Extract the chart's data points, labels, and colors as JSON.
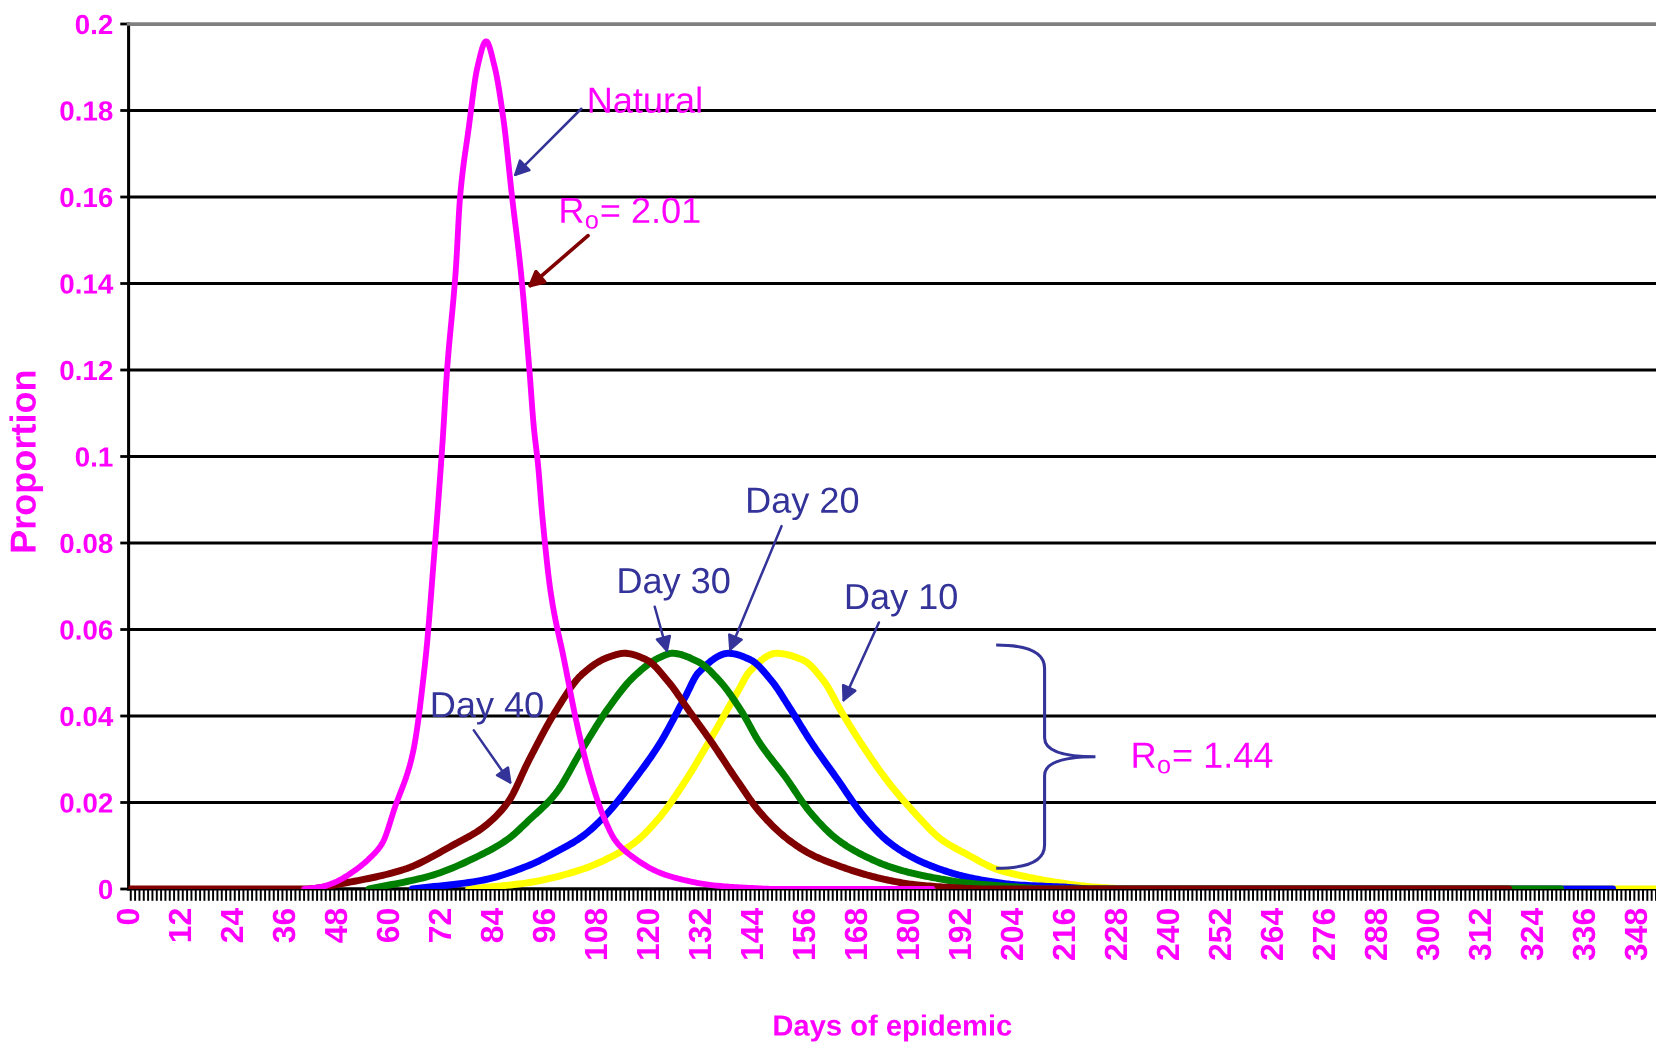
{
  "chart_data": {
    "type": "line",
    "xlabel": "Days of epidemic",
    "ylabel": "Proportion",
    "line_style": "solid",
    "grid": "y",
    "xlim": [
      -0.5,
      352
    ],
    "ylim": [
      0,
      0.2
    ],
    "yticks": [
      0,
      0.02,
      0.04,
      0.06,
      0.08,
      0.1,
      0.12,
      0.14,
      0.16,
      0.18,
      0.2
    ],
    "xticks": [
      0,
      {
        "value": 1,
        "label": null
      },
      {
        "value": 2,
        "label": null
      },
      {
        "value": 3,
        "label": null
      },
      {
        "value": 4,
        "label": null
      },
      {
        "value": 5,
        "label": null
      },
      {
        "value": 6,
        "label": null
      },
      {
        "value": 7,
        "label": null
      },
      {
        "value": 8,
        "label": null
      },
      {
        "value": 9,
        "label": null
      },
      {
        "value": 10,
        "label": null
      },
      {
        "value": 11,
        "label": null
      },
      12,
      {
        "value": 13,
        "label": null
      },
      {
        "value": 14,
        "label": null
      },
      {
        "value": 15,
        "label": null
      },
      {
        "value": 16,
        "label": null
      },
      {
        "value": 17,
        "label": null
      },
      {
        "value": 18,
        "label": null
      },
      {
        "value": 19,
        "label": null
      },
      {
        "value": 20,
        "label": null
      },
      {
        "value": 21,
        "label": null
      },
      {
        "value": 22,
        "label": null
      },
      {
        "value": 23,
        "label": null
      },
      24,
      {
        "value": 25,
        "label": null
      },
      {
        "value": 26,
        "label": null
      },
      {
        "value": 27,
        "label": null
      },
      {
        "value": 28,
        "label": null
      },
      {
        "value": 29,
        "label": null
      },
      {
        "value": 30,
        "label": null
      },
      {
        "value": 31,
        "label": null
      },
      {
        "value": 32,
        "label": null
      },
      {
        "value": 33,
        "label": null
      },
      {
        "value": 34,
        "label": null
      },
      {
        "value": 35,
        "label": null
      },
      36,
      {
        "value": 37,
        "label": null
      },
      {
        "value": 38,
        "label": null
      },
      {
        "value": 39,
        "label": null
      },
      {
        "value": 40,
        "label": null
      },
      {
        "value": 41,
        "label": null
      },
      {
        "value": 42,
        "label": null
      },
      {
        "value": 43,
        "label": null
      },
      {
        "value": 44,
        "label": null
      },
      {
        "value": 45,
        "label": null
      },
      {
        "value": 46,
        "label": null
      },
      {
        "value": 47,
        "label": null
      },
      48,
      {
        "value": 49,
        "label": null
      },
      {
        "value": 50,
        "label": null
      },
      {
        "value": 51,
        "label": null
      },
      {
        "value": 52,
        "label": null
      },
      {
        "value": 53,
        "label": null
      },
      {
        "value": 54,
        "label": null
      },
      {
        "value": 55,
        "label": null
      },
      {
        "value": 56,
        "label": null
      },
      {
        "value": 57,
        "label": null
      },
      {
        "value": 58,
        "label": null
      },
      {
        "value": 59,
        "label": null
      },
      60,
      {
        "value": 61,
        "label": null
      },
      {
        "value": 62,
        "label": null
      },
      {
        "value": 63,
        "label": null
      },
      {
        "value": 64,
        "label": null
      },
      {
        "value": 65,
        "label": null
      },
      {
        "value": 66,
        "label": null
      },
      {
        "value": 67,
        "label": null
      },
      {
        "value": 68,
        "label": null
      },
      {
        "value": 69,
        "label": null
      },
      {
        "value": 70,
        "label": null
      },
      {
        "value": 71,
        "label": null
      },
      72,
      {
        "value": 73,
        "label": null
      },
      {
        "value": 74,
        "label": null
      },
      {
        "value": 75,
        "label": null
      },
      {
        "value": 76,
        "label": null
      },
      {
        "value": 77,
        "label": null
      },
      {
        "value": 78,
        "label": null
      },
      {
        "value": 79,
        "label": null
      },
      {
        "value": 80,
        "label": null
      },
      {
        "value": 81,
        "label": null
      },
      {
        "value": 82,
        "label": null
      },
      {
        "value": 83,
        "label": null
      },
      84,
      {
        "value": 85,
        "label": null
      },
      {
        "value": 86,
        "label": null
      },
      {
        "value": 87,
        "label": null
      },
      {
        "value": 88,
        "label": null
      },
      {
        "value": 89,
        "label": null
      },
      {
        "value": 90,
        "label": null
      },
      {
        "value": 91,
        "label": null
      },
      {
        "value": 92,
        "label": null
      },
      {
        "value": 93,
        "label": null
      },
      {
        "value": 94,
        "label": null
      },
      {
        "value": 95,
        "label": null
      },
      96,
      {
        "value": 97,
        "label": null
      },
      {
        "value": 98,
        "label": null
      },
      {
        "value": 99,
        "label": null
      },
      {
        "value": 100,
        "label": null
      },
      {
        "value": 101,
        "label": null
      },
      {
        "value": 102,
        "label": null
      },
      {
        "value": 103,
        "label": null
      },
      {
        "value": 104,
        "label": null
      },
      {
        "value": 105,
        "label": null
      },
      {
        "value": 106,
        "label": null
      },
      {
        "value": 107,
        "label": null
      },
      108,
      {
        "value": 109,
        "label": null
      },
      {
        "value": 110,
        "label": null
      },
      {
        "value": 111,
        "label": null
      },
      {
        "value": 112,
        "label": null
      },
      {
        "value": 113,
        "label": null
      },
      {
        "value": 114,
        "label": null
      },
      {
        "value": 115,
        "label": null
      },
      {
        "value": 116,
        "label": null
      },
      {
        "value": 117,
        "label": null
      },
      {
        "value": 118,
        "label": null
      },
      {
        "value": 119,
        "label": null
      },
      120,
      {
        "value": 121,
        "label": null
      },
      {
        "value": 122,
        "label": null
      },
      {
        "value": 123,
        "label": null
      },
      {
        "value": 124,
        "label": null
      },
      {
        "value": 125,
        "label": null
      },
      {
        "value": 126,
        "label": null
      },
      {
        "value": 127,
        "label": null
      },
      {
        "value": 128,
        "label": null
      },
      {
        "value": 129,
        "label": null
      },
      {
        "value": 130,
        "label": null
      },
      {
        "value": 131,
        "label": null
      },
      132,
      {
        "value": 133,
        "label": null
      },
      {
        "value": 134,
        "label": null
      },
      {
        "value": 135,
        "label": null
      },
      {
        "value": 136,
        "label": null
      },
      {
        "value": 137,
        "label": null
      },
      {
        "value": 138,
        "label": null
      },
      {
        "value": 139,
        "label": null
      },
      {
        "value": 140,
        "label": null
      },
      {
        "value": 141,
        "label": null
      },
      {
        "value": 142,
        "label": null
      },
      {
        "value": 143,
        "label": null
      },
      144,
      {
        "value": 145,
        "label": null
      },
      {
        "value": 146,
        "label": null
      },
      {
        "value": 147,
        "label": null
      },
      {
        "value": 148,
        "label": null
      },
      {
        "value": 149,
        "label": null
      },
      {
        "value": 150,
        "label": null
      },
      {
        "value": 151,
        "label": null
      },
      {
        "value": 152,
        "label": null
      },
      {
        "value": 153,
        "label": null
      },
      {
        "value": 154,
        "label": null
      },
      {
        "value": 155,
        "label": null
      },
      156,
      {
        "value": 157,
        "label": null
      },
      {
        "value": 158,
        "label": null
      },
      {
        "value": 159,
        "label": null
      },
      {
        "value": 160,
        "label": null
      },
      {
        "value": 161,
        "label": null
      },
      {
        "value": 162,
        "label": null
      },
      {
        "value": 163,
        "label": null
      },
      {
        "value": 164,
        "label": null
      },
      {
        "value": 165,
        "label": null
      },
      {
        "value": 166,
        "label": null
      },
      {
        "value": 167,
        "label": null
      },
      168,
      {
        "value": 169,
        "label": null
      },
      {
        "value": 170,
        "label": null
      },
      {
        "value": 171,
        "label": null
      },
      {
        "value": 172,
        "label": null
      },
      {
        "value": 173,
        "label": null
      },
      {
        "value": 174,
        "label": null
      },
      {
        "value": 175,
        "label": null
      },
      {
        "value": 176,
        "label": null
      },
      {
        "value": 177,
        "label": null
      },
      {
        "value": 178,
        "label": null
      },
      {
        "value": 179,
        "label": null
      },
      180,
      {
        "value": 181,
        "label": null
      },
      {
        "value": 182,
        "label": null
      },
      {
        "value": 183,
        "label": null
      },
      {
        "value": 184,
        "label": null
      },
      {
        "value": 185,
        "label": null
      },
      {
        "value": 186,
        "label": null
      },
      {
        "value": 187,
        "label": null
      },
      {
        "value": 188,
        "label": null
      },
      {
        "value": 189,
        "label": null
      },
      {
        "value": 190,
        "label": null
      },
      {
        "value": 191,
        "label": null
      },
      192,
      {
        "value": 193,
        "label": null
      },
      {
        "value": 194,
        "label": null
      },
      {
        "value": 195,
        "label": null
      },
      {
        "value": 196,
        "label": null
      },
      {
        "value": 197,
        "label": null
      },
      {
        "value": 198,
        "label": null
      },
      {
        "value": 199,
        "label": null
      },
      {
        "value": 200,
        "label": null
      },
      {
        "value": 201,
        "label": null
      },
      {
        "value": 202,
        "label": null
      },
      {
        "value": 203,
        "label": null
      },
      204,
      {
        "value": 205,
        "label": null
      },
      {
        "value": 206,
        "label": null
      },
      {
        "value": 207,
        "label": null
      },
      {
        "value": 208,
        "label": null
      },
      {
        "value": 209,
        "label": null
      },
      {
        "value": 210,
        "label": null
      },
      {
        "value": 211,
        "label": null
      },
      {
        "value": 212,
        "label": null
      },
      {
        "value": 213,
        "label": null
      },
      {
        "value": 214,
        "label": null
      },
      {
        "value": 215,
        "label": null
      },
      216,
      {
        "value": 217,
        "label": null
      },
      {
        "value": 218,
        "label": null
      },
      {
        "value": 219,
        "label": null
      },
      {
        "value": 220,
        "label": null
      },
      {
        "value": 221,
        "label": null
      },
      {
        "value": 222,
        "label": null
      },
      {
        "value": 223,
        "label": null
      },
      {
        "value": 224,
        "label": null
      },
      {
        "value": 225,
        "label": null
      },
      {
        "value": 226,
        "label": null
      },
      {
        "value": 227,
        "label": null
      },
      228,
      {
        "value": 229,
        "label": null
      },
      {
        "value": 230,
        "label": null
      },
      {
        "value": 231,
        "label": null
      },
      {
        "value": 232,
        "label": null
      },
      {
        "value": 233,
        "label": null
      },
      {
        "value": 234,
        "label": null
      },
      {
        "value": 235,
        "label": null
      },
      {
        "value": 236,
        "label": null
      },
      {
        "value": 237,
        "label": null
      },
      {
        "value": 238,
        "label": null
      },
      {
        "value": 239,
        "label": null
      },
      240,
      {
        "value": 241,
        "label": null
      },
      {
        "value": 242,
        "label": null
      },
      {
        "value": 243,
        "label": null
      },
      {
        "value": 244,
        "label": null
      },
      {
        "value": 245,
        "label": null
      },
      {
        "value": 246,
        "label": null
      },
      {
        "value": 247,
        "label": null
      },
      {
        "value": 248,
        "label": null
      },
      {
        "value": 249,
        "label": null
      },
      {
        "value": 250,
        "label": null
      },
      {
        "value": 251,
        "label": null
      },
      252,
      {
        "value": 253,
        "label": null
      },
      {
        "value": 254,
        "label": null
      },
      {
        "value": 255,
        "label": null
      },
      {
        "value": 256,
        "label": null
      },
      {
        "value": 257,
        "label": null
      },
      {
        "value": 258,
        "label": null
      },
      {
        "value": 259,
        "label": null
      },
      {
        "value": 260,
        "label": null
      },
      {
        "value": 261,
        "label": null
      },
      {
        "value": 262,
        "label": null
      },
      {
        "value": 263,
        "label": null
      },
      264,
      {
        "value": 265,
        "label": null
      },
      {
        "value": 266,
        "label": null
      },
      {
        "value": 267,
        "label": null
      },
      {
        "value": 268,
        "label": null
      },
      {
        "value": 269,
        "label": null
      },
      {
        "value": 270,
        "label": null
      },
      {
        "value": 271,
        "label": null
      },
      {
        "value": 272,
        "label": null
      },
      {
        "value": 273,
        "label": null
      },
      {
        "value": 274,
        "label": null
      },
      {
        "value": 275,
        "label": null
      },
      276,
      {
        "value": 277,
        "label": null
      },
      {
        "value": 278,
        "label": null
      },
      {
        "value": 279,
        "label": null
      },
      {
        "value": 280,
        "label": null
      },
      {
        "value": 281,
        "label": null
      },
      {
        "value": 282,
        "label": null
      },
      {
        "value": 283,
        "label": null
      },
      {
        "value": 284,
        "label": null
      },
      {
        "value": 285,
        "label": null
      },
      {
        "value": 286,
        "label": null
      },
      {
        "value": 287,
        "label": null
      },
      288,
      {
        "value": 289,
        "label": null
      },
      {
        "value": 290,
        "label": null
      },
      {
        "value": 291,
        "label": null
      },
      {
        "value": 292,
        "label": null
      },
      {
        "value": 293,
        "label": null
      },
      {
        "value": 294,
        "label": null
      },
      {
        "value": 295,
        "label": null
      },
      {
        "value": 296,
        "label": null
      },
      {
        "value": 297,
        "label": null
      },
      {
        "value": 298,
        "label": null
      },
      {
        "value": 299,
        "label": null
      },
      300,
      {
        "value": 301,
        "label": null
      },
      {
        "value": 302,
        "label": null
      },
      {
        "value": 303,
        "label": null
      },
      {
        "value": 304,
        "label": null
      },
      {
        "value": 305,
        "label": null
      },
      {
        "value": 306,
        "label": null
      },
      {
        "value": 307,
        "label": null
      },
      {
        "value": 308,
        "label": null
      },
      {
        "value": 309,
        "label": null
      },
      {
        "value": 310,
        "label": null
      },
      {
        "value": 311,
        "label": null
      },
      312,
      {
        "value": 313,
        "label": null
      },
      {
        "value": 314,
        "label": null
      },
      {
        "value": 315,
        "label": null
      },
      {
        "value": 316,
        "label": null
      },
      {
        "value": 317,
        "label": null
      },
      {
        "value": 318,
        "label": null
      },
      {
        "value": 319,
        "label": null
      },
      {
        "value": 320,
        "label": null
      },
      {
        "value": 321,
        "label": null
      },
      {
        "value": 322,
        "label": null
      },
      {
        "value": 323,
        "label": null
      },
      324,
      {
        "value": 325,
        "label": null
      },
      {
        "value": 326,
        "label": null
      },
      {
        "value": 327,
        "label": null
      },
      {
        "value": 328,
        "label": null
      },
      {
        "value": 329,
        "label": null
      },
      {
        "value": 330,
        "label": null
      },
      {
        "value": 331,
        "label": null
      },
      {
        "value": 332,
        "label": null
      },
      {
        "value": 333,
        "label": null
      },
      {
        "value": 334,
        "label": null
      },
      {
        "value": 335,
        "label": null
      },
      336,
      {
        "value": 337,
        "label": null
      },
      {
        "value": 338,
        "label": null
      },
      {
        "value": 339,
        "label": null
      },
      {
        "value": 340,
        "label": null
      },
      {
        "value": 341,
        "label": null
      },
      {
        "value": 342,
        "label": null
      },
      {
        "value": 343,
        "label": null
      },
      {
        "value": 344,
        "label": null
      },
      {
        "value": 345,
        "label": null
      },
      {
        "value": 346,
        "label": null
      },
      {
        "value": 347,
        "label": null
      },
      348,
      {
        "value": 349,
        "label": null
      },
      {
        "value": 350,
        "label": null
      },
      {
        "value": 351,
        "label": null
      },
      {
        "value": 352,
        "label": null
      }
    ],
    "series": [
      {
        "color": "#ff00ff",
        "x": [
          40,
          44,
          47,
          52,
          55,
          58,
          61,
          65,
          68,
          70,
          72,
          73,
          75,
          76,
          78,
          80,
          82,
          84,
          86,
          88,
          90,
          92,
          93,
          94,
          95,
          97,
          100,
          103,
          106,
          109,
          112,
          116,
          122,
          128,
          134,
          142,
          150,
          185
        ],
        "values": [
          0,
          0.0005,
          0.0015,
          0.0045,
          0.007,
          0.0105,
          0.019,
          0.031,
          0.053,
          0.077,
          0.104,
          0.12,
          0.143,
          0.16,
          0.176,
          0.19,
          0.196,
          0.19,
          0.178,
          0.16,
          0.143,
          0.12,
          0.107,
          0.098,
          0.086,
          0.068,
          0.053,
          0.038,
          0.026,
          0.017,
          0.011,
          0.0073,
          0.0038,
          0.002,
          0.0009,
          0.0003,
          0,
          0
        ]
      },
      {
        "color": "#800000",
        "x": [
          0,
          40,
          50,
          63,
          75,
          81,
          87,
          92,
          98,
          104,
          110,
          114,
          119,
          124,
          129,
          134,
          140,
          145,
          151,
          157,
          163,
          169,
          175,
          181,
          190,
          198,
          318
        ],
        "values": [
          0,
          0,
          0.0015,
          0.0045,
          0.0105,
          0.014,
          0.02,
          0.03,
          0.041,
          0.0495,
          0.0535,
          0.0545,
          0.053,
          0.048,
          0.041,
          0.034,
          0.025,
          0.018,
          0.012,
          0.008,
          0.0055,
          0.0035,
          0.002,
          0.001,
          0.0003,
          0,
          0
        ]
      },
      {
        "color": "#008000",
        "x": [
          55,
          69,
          81,
          87,
          92,
          98,
          104,
          110,
          116,
          122,
          125,
          131,
          136,
          141,
          145,
          151,
          157,
          163,
          169,
          175,
          181,
          187,
          192,
          204,
          212,
          330
        ],
        "values": [
          0,
          0.003,
          0.008,
          0.0115,
          0.016,
          0.022,
          0.032,
          0.0415,
          0.049,
          0.0535,
          0.0545,
          0.0525,
          0.048,
          0.041,
          0.034,
          0.026,
          0.0175,
          0.0115,
          0.0078,
          0.0052,
          0.0035,
          0.0023,
          0.0015,
          0.0005,
          0,
          0
        ]
      },
      {
        "color": "#0000ff",
        "x": [
          65,
          81,
          92,
          98,
          104,
          110,
          116,
          122,
          128,
          131,
          138,
          143,
          148,
          152,
          157,
          163,
          169,
          175,
          181,
          187,
          192,
          198,
          204,
          216,
          222,
          342
        ],
        "values": [
          0,
          0.002,
          0.0055,
          0.0085,
          0.012,
          0.0175,
          0.025,
          0.0335,
          0.0445,
          0.05,
          0.0545,
          0.053,
          0.048,
          0.042,
          0.034,
          0.0255,
          0.017,
          0.0108,
          0.007,
          0.0045,
          0.003,
          0.0018,
          0.001,
          0.0004,
          0,
          0
        ]
      },
      {
        "color": "#ffff00",
        "x": [
          78,
          92,
          104,
          110,
          116,
          122,
          128,
          134,
          140,
          143,
          149,
          155,
          160,
          164,
          169,
          175,
          181,
          187,
          193,
          200,
          205,
          211,
          222,
          232,
          352
        ],
        "values": [
          0,
          0.0015,
          0.0045,
          0.007,
          0.0105,
          0.0165,
          0.025,
          0.035,
          0.0455,
          0.0505,
          0.0545,
          0.053,
          0.048,
          0.041,
          0.033,
          0.0245,
          0.0175,
          0.0115,
          0.008,
          0.0045,
          0.0032,
          0.002,
          0.0005,
          0,
          0
        ]
      }
    ],
    "annotations": [
      {
        "text": "Natural",
        "x": 87.6,
        "y": 0.164
      },
      {
        "text": "R$_{o}$= 2.01",
        "x": 91,
        "y": 0.1385
      },
      {
        "text": "Day 40",
        "x": 88.3,
        "y": 0.0236
      },
      {
        "text": "Day 30",
        "x": 124,
        "y": 0.0542
      },
      {
        "text": "Day 20",
        "x": 138,
        "y": 0.0545
      },
      {
        "text": "Day 10",
        "x": 164,
        "y": 0.0425
      },
      "R$_{o}$= 1.44"
    ]
  }
}
